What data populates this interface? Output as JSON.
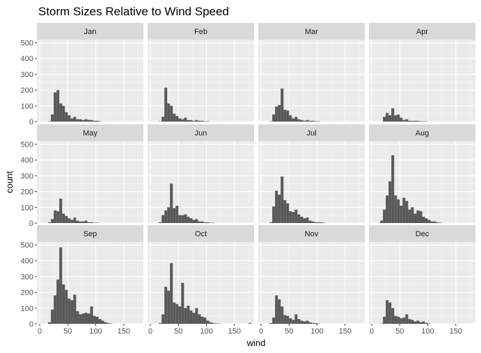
{
  "chart_data": {
    "type": "bar",
    "chart_kind": "faceted histogram",
    "title": "Storm Sizes Relative to Wind Speed",
    "xlabel": "wind",
    "ylabel": "count",
    "xlim": [
      -5,
      185
    ],
    "ylim": [
      0,
      520
    ],
    "x_ticks": [
      0,
      50,
      100,
      150
    ],
    "y_ticks": [
      0,
      100,
      200,
      300,
      400,
      500
    ],
    "bin_width": 5,
    "bin_starts": [
      10,
      15,
      20,
      25,
      30,
      35,
      40,
      45,
      50,
      55,
      60,
      65,
      70,
      75,
      80,
      85,
      90,
      95,
      100,
      105,
      110,
      115,
      120,
      125,
      130,
      135,
      140,
      145,
      150,
      155,
      160,
      165,
      170,
      175,
      180
    ],
    "grid": true,
    "colors": {
      "bar": "#595959",
      "panel": "#ebebeb",
      "strip": "#d9d9d9",
      "grid_major": "#ffffff"
    },
    "facets": [
      {
        "name": "Jan",
        "values": [
          0,
          2,
          45,
          185,
          200,
          115,
          100,
          60,
          40,
          20,
          30,
          15,
          15,
          10,
          15,
          10,
          10,
          5,
          5,
          2,
          0,
          0,
          0,
          0,
          0,
          0,
          0,
          0,
          0,
          0,
          0,
          0,
          0,
          0,
          0
        ]
      },
      {
        "name": "Feb",
        "values": [
          0,
          2,
          30,
          215,
          115,
          100,
          50,
          35,
          20,
          15,
          25,
          10,
          10,
          5,
          10,
          5,
          5,
          2,
          2,
          0,
          0,
          0,
          0,
          0,
          0,
          0,
          0,
          0,
          0,
          0,
          0,
          0,
          0,
          0,
          0
        ]
      },
      {
        "name": "Mar",
        "values": [
          0,
          2,
          45,
          95,
          105,
          210,
          75,
          70,
          40,
          20,
          30,
          15,
          10,
          5,
          10,
          5,
          5,
          2,
          2,
          0,
          0,
          0,
          0,
          0,
          0,
          0,
          0,
          0,
          0,
          0,
          0,
          0,
          0,
          0,
          0
        ]
      },
      {
        "name": "Apr",
        "values": [
          0,
          0,
          30,
          55,
          40,
          85,
          40,
          45,
          25,
          10,
          15,
          5,
          5,
          5,
          5,
          2,
          2,
          2,
          0,
          0,
          0,
          0,
          0,
          0,
          0,
          0,
          0,
          0,
          0,
          0,
          0,
          0,
          0,
          0,
          0
        ]
      },
      {
        "name": "May",
        "values": [
          0,
          5,
          25,
          80,
          75,
          155,
          60,
          45,
          30,
          20,
          35,
          15,
          10,
          10,
          15,
          5,
          5,
          2,
          2,
          0,
          0,
          0,
          0,
          0,
          0,
          0,
          0,
          0,
          0,
          0,
          0,
          0,
          0,
          0,
          0
        ]
      },
      {
        "name": "Jun",
        "values": [
          0,
          5,
          50,
          80,
          100,
          250,
          95,
          110,
          50,
          50,
          55,
          40,
          30,
          20,
          25,
          10,
          10,
          5,
          5,
          2,
          2,
          0,
          0,
          0,
          0,
          0,
          0,
          0,
          0,
          0,
          0,
          0,
          0,
          0,
          0
        ]
      },
      {
        "name": "Jul",
        "values": [
          0,
          5,
          105,
          205,
          180,
          295,
          145,
          125,
          75,
          70,
          85,
          55,
          40,
          30,
          35,
          15,
          10,
          5,
          5,
          5,
          2,
          0,
          0,
          0,
          0,
          0,
          0,
          0,
          0,
          0,
          0,
          0,
          0,
          0,
          0
        ]
      },
      {
        "name": "Aug",
        "values": [
          0,
          15,
          85,
          175,
          265,
          430,
          175,
          150,
          110,
          160,
          140,
          85,
          100,
          60,
          80,
          75,
          40,
          30,
          20,
          10,
          10,
          5,
          2,
          0,
          0,
          0,
          0,
          0,
          0,
          0,
          0,
          0,
          0,
          0,
          0
        ]
      },
      {
        "name": "Sep",
        "values": [
          0,
          10,
          90,
          180,
          280,
          485,
          250,
          215,
          160,
          150,
          185,
          80,
          60,
          65,
          70,
          65,
          110,
          50,
          45,
          30,
          20,
          10,
          5,
          2,
          0,
          0,
          0,
          0,
          0,
          0,
          0,
          0,
          0,
          0,
          0
        ]
      },
      {
        "name": "Oct",
        "values": [
          0,
          5,
          60,
          235,
          210,
          385,
          135,
          125,
          110,
          260,
          100,
          115,
          85,
          70,
          100,
          60,
          45,
          40,
          20,
          10,
          5,
          2,
          2,
          0,
          0,
          0,
          0,
          0,
          0,
          0,
          0,
          0,
          0,
          5,
          0
        ]
      },
      {
        "name": "Nov",
        "values": [
          0,
          5,
          40,
          180,
          155,
          110,
          55,
          50,
          35,
          25,
          60,
          30,
          20,
          15,
          20,
          10,
          5,
          5,
          2,
          0,
          0,
          0,
          0,
          0,
          0,
          0,
          0,
          0,
          0,
          0,
          0,
          0,
          0,
          0,
          0
        ]
      },
      {
        "name": "Dec",
        "values": [
          0,
          2,
          45,
          150,
          135,
          100,
          50,
          45,
          35,
          40,
          60,
          30,
          25,
          15,
          20,
          10,
          15,
          5,
          2,
          0,
          0,
          0,
          0,
          0,
          0,
          0,
          0,
          0,
          0,
          0,
          0,
          0,
          0,
          0,
          0
        ]
      }
    ]
  }
}
